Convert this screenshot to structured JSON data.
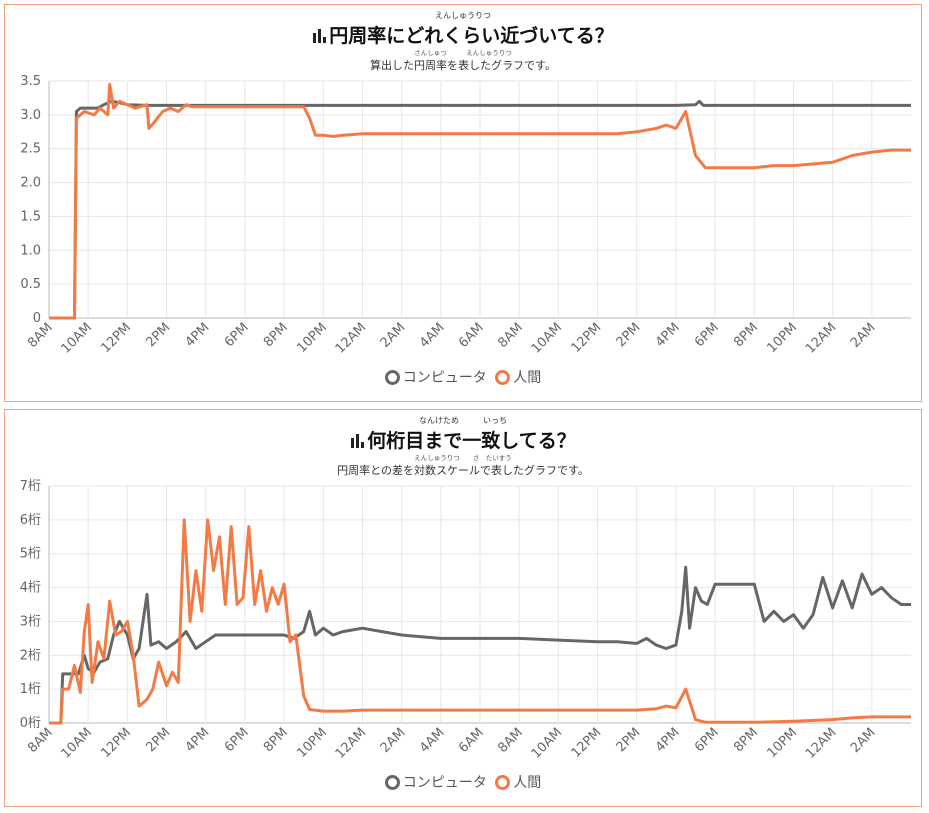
{
  "chart_data": [
    {
      "type": "line",
      "title_ruby": "えんしゅうりつ",
      "title": "円周率にどれくらい近づいてる？",
      "subtitle_ruby": "さんしゅつ　　　えんしゅうりつ",
      "subtitle": "算出した円周率を表したグラフです。",
      "ylim": [
        0,
        3.5
      ],
      "y_ticks": [
        "0",
        "0.5",
        "1.0",
        "1.5",
        "2.0",
        "2.5",
        "3.0",
        "3.5"
      ],
      "x_ticks": [
        "8AM",
        "10AM",
        "12PM",
        "2PM",
        "4PM",
        "6PM",
        "8PM",
        "10PM",
        "12AM",
        "2AM",
        "4AM",
        "6AM",
        "8AM",
        "10AM",
        "12PM",
        "2PM",
        "4PM",
        "6PM",
        "8PM",
        "10PM",
        "12AM",
        "2AM"
      ],
      "grid": true,
      "legend_position": "bottom",
      "series": [
        {
          "name": "コンピュータ",
          "color": "#666666",
          "points": [
            [
              0,
              0
            ],
            [
              1.3,
              0
            ],
            [
              1.4,
              3.05
            ],
            [
              1.6,
              3.1
            ],
            [
              2.5,
              3.1
            ],
            [
              2.8,
              3.15
            ],
            [
              3.2,
              3.2
            ],
            [
              3.6,
              3.18
            ],
            [
              4.0,
              3.15
            ],
            [
              5,
              3.14
            ],
            [
              8,
              3.14
            ],
            [
              30,
              3.14
            ],
            [
              32,
              3.14
            ],
            [
              33,
              3.15
            ],
            [
              33.2,
              3.2
            ],
            [
              33.4,
              3.14
            ],
            [
              44,
              3.14
            ]
          ]
        },
        {
          "name": "人間",
          "color": "#f47a45",
          "points": [
            [
              0,
              0
            ],
            [
              1.3,
              0
            ],
            [
              1.4,
              2.95
            ],
            [
              1.8,
              3.05
            ],
            [
              2.3,
              3.0
            ],
            [
              2.6,
              3.1
            ],
            [
              3.0,
              3.0
            ],
            [
              3.1,
              3.45
            ],
            [
              3.3,
              3.1
            ],
            [
              3.6,
              3.2
            ],
            [
              4.0,
              3.15
            ],
            [
              4.4,
              3.1
            ],
            [
              5.0,
              3.15
            ],
            [
              5.1,
              2.8
            ],
            [
              5.4,
              2.9
            ],
            [
              5.8,
              3.05
            ],
            [
              6.2,
              3.1
            ],
            [
              6.6,
              3.05
            ],
            [
              7.0,
              3.15
            ],
            [
              7.3,
              3.12
            ],
            [
              13.0,
              3.12
            ],
            [
              13.3,
              2.95
            ],
            [
              13.6,
              2.7
            ],
            [
              14.0,
              2.7
            ],
            [
              14.5,
              2.68
            ],
            [
              15.0,
              2.7
            ],
            [
              16.0,
              2.72
            ],
            [
              18,
              2.72
            ],
            [
              20,
              2.72
            ],
            [
              26,
              2.72
            ],
            [
              28,
              2.72
            ],
            [
              29,
              2.72
            ],
            [
              30,
              2.75
            ],
            [
              31,
              2.8
            ],
            [
              31.5,
              2.85
            ],
            [
              32,
              2.8
            ],
            [
              32.5,
              3.05
            ],
            [
              33,
              2.4
            ],
            [
              33.5,
              2.22
            ],
            [
              36,
              2.22
            ],
            [
              37,
              2.25
            ],
            [
              38,
              2.25
            ],
            [
              40,
              2.3
            ],
            [
              41,
              2.4
            ],
            [
              42,
              2.45
            ],
            [
              43,
              2.48
            ],
            [
              44,
              2.48
            ]
          ]
        }
      ]
    },
    {
      "type": "line",
      "title_ruby": "なんけため　　　いっち",
      "title": "何桁目まで一致してる？",
      "subtitle_ruby": "えんしゅうりつ　　さ　たいすう",
      "subtitle": "円周率との差を対数スケールで表したグラフです。",
      "ylim": [
        0,
        7
      ],
      "y_ticks": [
        "0桁",
        "1桁",
        "2桁",
        "3桁",
        "4桁",
        "5桁",
        "6桁",
        "7桁"
      ],
      "x_ticks": [
        "8AM",
        "10AM",
        "12PM",
        "2PM",
        "4PM",
        "6PM",
        "8PM",
        "10PM",
        "12AM",
        "2AM",
        "4AM",
        "6AM",
        "8AM",
        "10AM",
        "12PM",
        "2PM",
        "4PM",
        "6PM",
        "8PM",
        "10PM",
        "12AM",
        "2AM"
      ],
      "grid": true,
      "legend_position": "bottom",
      "series": [
        {
          "name": "コンピュータ",
          "color": "#666666",
          "points": [
            [
              0,
              0
            ],
            [
              0.6,
              0
            ],
            [
              0.7,
              1.45
            ],
            [
              1.5,
              1.45
            ],
            [
              1.8,
              2.0
            ],
            [
              2.0,
              1.6
            ],
            [
              2.3,
              1.5
            ],
            [
              2.6,
              1.8
            ],
            [
              3.0,
              1.9
            ],
            [
              3.3,
              2.6
            ],
            [
              3.6,
              3.0
            ],
            [
              4.0,
              2.6
            ],
            [
              4.3,
              1.9
            ],
            [
              4.6,
              2.2
            ],
            [
              5.0,
              3.8
            ],
            [
              5.2,
              2.3
            ],
            [
              5.6,
              2.4
            ],
            [
              6.0,
              2.2
            ],
            [
              6.5,
              2.4
            ],
            [
              7.0,
              2.7
            ],
            [
              7.5,
              2.2
            ],
            [
              8.0,
              2.4
            ],
            [
              8.5,
              2.6
            ],
            [
              9.0,
              2.6
            ],
            [
              10,
              2.6
            ],
            [
              11,
              2.6
            ],
            [
              12,
              2.6
            ],
            [
              12.5,
              2.5
            ],
            [
              13.0,
              2.7
            ],
            [
              13.3,
              3.3
            ],
            [
              13.6,
              2.6
            ],
            [
              14,
              2.8
            ],
            [
              14.5,
              2.6
            ],
            [
              15,
              2.7
            ],
            [
              16,
              2.8
            ],
            [
              17,
              2.7
            ],
            [
              18,
              2.6
            ],
            [
              19,
              2.55
            ],
            [
              20,
              2.5
            ],
            [
              22,
              2.5
            ],
            [
              24,
              2.5
            ],
            [
              26,
              2.45
            ],
            [
              28,
              2.4
            ],
            [
              29,
              2.4
            ],
            [
              30,
              2.35
            ],
            [
              30.5,
              2.5
            ],
            [
              31,
              2.3
            ],
            [
              31.5,
              2.2
            ],
            [
              32,
              2.3
            ],
            [
              32.3,
              3.3
            ],
            [
              32.5,
              4.6
            ],
            [
              32.7,
              2.8
            ],
            [
              33,
              4.0
            ],
            [
              33.3,
              3.6
            ],
            [
              33.6,
              3.5
            ],
            [
              34,
              4.1
            ],
            [
              36,
              4.1
            ],
            [
              36.5,
              3.0
            ],
            [
              37,
              3.3
            ],
            [
              37.5,
              3.0
            ],
            [
              38,
              3.2
            ],
            [
              38.5,
              2.8
            ],
            [
              39,
              3.2
            ],
            [
              39.5,
              4.3
            ],
            [
              40,
              3.4
            ],
            [
              40.5,
              4.2
            ],
            [
              41,
              3.4
            ],
            [
              41.5,
              4.4
            ],
            [
              42,
              3.8
            ],
            [
              42.5,
              4.0
            ],
            [
              43,
              3.7
            ],
            [
              43.5,
              3.5
            ],
            [
              44,
              3.5
            ]
          ]
        },
        {
          "name": "人間",
          "color": "#f47a45",
          "points": [
            [
              0,
              0
            ],
            [
              0.6,
              0
            ],
            [
              0.7,
              1.0
            ],
            [
              1.0,
              1.0
            ],
            [
              1.3,
              1.7
            ],
            [
              1.6,
              0.9
            ],
            [
              1.8,
              2.7
            ],
            [
              2.0,
              3.5
            ],
            [
              2.2,
              1.2
            ],
            [
              2.5,
              2.4
            ],
            [
              2.8,
              1.9
            ],
            [
              3.1,
              3.6
            ],
            [
              3.4,
              2.6
            ],
            [
              3.7,
              2.7
            ],
            [
              4.0,
              3.0
            ],
            [
              4.3,
              2.0
            ],
            [
              4.6,
              0.5
            ],
            [
              5.0,
              0.7
            ],
            [
              5.3,
              1.0
            ],
            [
              5.6,
              1.8
            ],
            [
              6.0,
              1.1
            ],
            [
              6.3,
              1.5
            ],
            [
              6.6,
              1.2
            ],
            [
              6.9,
              6.0
            ],
            [
              7.2,
              3.0
            ],
            [
              7.5,
              4.5
            ],
            [
              7.8,
              3.3
            ],
            [
              8.1,
              6.0
            ],
            [
              8.4,
              4.5
            ],
            [
              8.7,
              5.5
            ],
            [
              9.0,
              3.5
            ],
            [
              9.3,
              5.8
            ],
            [
              9.6,
              3.5
            ],
            [
              9.9,
              3.7
            ],
            [
              10.2,
              5.8
            ],
            [
              10.5,
              3.5
            ],
            [
              10.8,
              4.5
            ],
            [
              11.1,
              3.3
            ],
            [
              11.4,
              4.0
            ],
            [
              11.7,
              3.5
            ],
            [
              12.0,
              4.1
            ],
            [
              12.3,
              2.4
            ],
            [
              12.6,
              2.6
            ],
            [
              13.0,
              0.8
            ],
            [
              13.3,
              0.4
            ],
            [
              14,
              0.35
            ],
            [
              15,
              0.35
            ],
            [
              16,
              0.38
            ],
            [
              18,
              0.38
            ],
            [
              20,
              0.38
            ],
            [
              22,
              0.38
            ],
            [
              26,
              0.38
            ],
            [
              28,
              0.38
            ],
            [
              30,
              0.38
            ],
            [
              31,
              0.42
            ],
            [
              31.5,
              0.5
            ],
            [
              32,
              0.45
            ],
            [
              32.5,
              1.0
            ],
            [
              33,
              0.1
            ],
            [
              33.5,
              0.02
            ],
            [
              36,
              0.02
            ],
            [
              38,
              0.05
            ],
            [
              40,
              0.1
            ],
            [
              41,
              0.15
            ],
            [
              42,
              0.18
            ],
            [
              43,
              0.18
            ],
            [
              44,
              0.18
            ]
          ]
        }
      ]
    }
  ]
}
